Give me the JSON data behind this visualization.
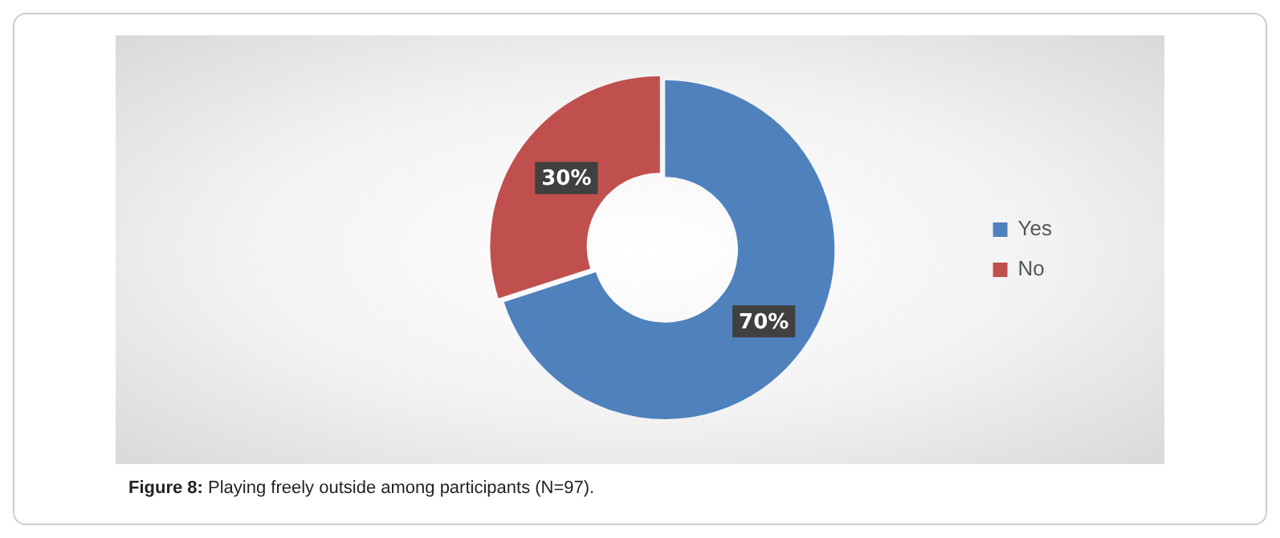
{
  "chart_data": {
    "type": "donut",
    "categories": [
      "Yes",
      "No"
    ],
    "values": [
      70,
      30
    ],
    "colors": [
      "#4f81bd",
      "#c0504d"
    ],
    "value_labels": [
      "70%",
      "30%"
    ],
    "legend": "right",
    "annotations": [
      "Figure 8: Playing freely outside among participants (N=97)."
    ]
  }
}
